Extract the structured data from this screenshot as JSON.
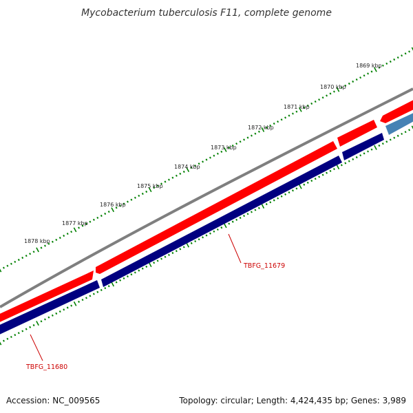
{
  "title": "Mycobacterium tuberculosis F11, complete genome",
  "footer": {
    "accession": "Accession: NC_009565",
    "summary": "Topology: circular; Length: 4,424,435 bp; Genes: 3,989"
  },
  "colors": {
    "backbone": "#808080",
    "forward_gene": "#ff0000",
    "reverse_gene": "#000080",
    "other_gene": "#4682b4",
    "ticks": "#008000",
    "gene_label": "#cc0000"
  },
  "ticks": [
    {
      "label": "1869 kbp",
      "icon": "green-dot-tick"
    },
    {
      "label": "1870 kbp",
      "icon": "green-dot-tick"
    },
    {
      "label": "1871 kbp",
      "icon": "green-dot-tick"
    },
    {
      "label": "1872 kbp",
      "icon": "green-dot-tick"
    },
    {
      "label": "1873 kbp",
      "icon": "green-dot-tick"
    },
    {
      "label": "1874 kbp",
      "icon": "green-dot-tick"
    },
    {
      "label": "1875 kbp",
      "icon": "green-dot-tick"
    },
    {
      "label": "1876 kbp",
      "icon": "green-dot-tick"
    },
    {
      "label": "1877 kbp",
      "icon": "green-dot-tick"
    },
    {
      "label": "1878 kbp",
      "icon": "green-dot-tick"
    }
  ],
  "gene_labels": [
    {
      "label": "TBFG_11679"
    },
    {
      "label": "TBFG_11680"
    }
  ]
}
